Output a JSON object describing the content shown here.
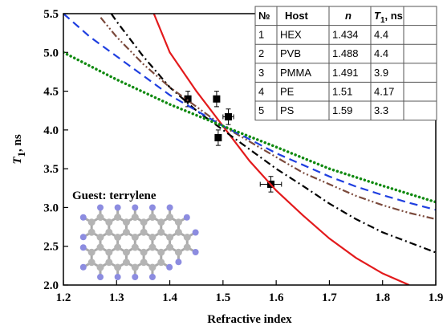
{
  "chart_data": {
    "type": "line",
    "x_label": "Refractive index",
    "y_label": {
      "symbol": "T",
      "subscript": "1",
      "unit": ", ns"
    },
    "annotation": "Guest: terrylene",
    "xlim": [
      1.2,
      1.9
    ],
    "xticks": [
      1.2,
      1.3,
      1.4,
      1.5,
      1.6,
      1.7,
      1.8,
      1.9
    ],
    "ylim": [
      2.0,
      5.5
    ],
    "yticks": [
      {
        "value": 2,
        "label": "2.0"
      },
      2.5,
      {
        "value": 3,
        "label": "3.0"
      },
      3.5,
      {
        "value": 4,
        "label": "4.0"
      },
      4.5,
      {
        "value": 5,
        "label": "5.0"
      },
      5.5
    ],
    "series": [
      {
        "type": "scatter",
        "marker": "square",
        "color": "#000000",
        "x": [
          1.434,
          1.488,
          1.491,
          1.51,
          1.59
        ],
        "values": [
          4.4,
          4.4,
          3.9,
          4.17,
          3.3
        ],
        "yerr": [
          0.1,
          0.1,
          0.1,
          0.1,
          0.1
        ],
        "xerr": [
          0,
          0,
          0,
          0.01,
          0.02
        ]
      },
      {
        "type": "line",
        "color": "#e31a1c",
        "dash": "solid",
        "x": [
          1.37,
          1.4,
          1.45,
          1.5,
          1.55,
          1.6,
          1.65,
          1.7,
          1.75,
          1.8,
          1.85
        ],
        "values": [
          5.5,
          5.0,
          4.5,
          4.05,
          3.6,
          3.22,
          2.9,
          2.6,
          2.35,
          2.15,
          2.0
        ]
      },
      {
        "type": "line",
        "color": "#000000",
        "dash": "dashdot",
        "x": [
          1.29,
          1.3,
          1.35,
          1.4,
          1.45,
          1.5,
          1.55,
          1.6,
          1.65,
          1.7,
          1.75,
          1.8,
          1.85,
          1.9
        ],
        "values": [
          5.5,
          5.4,
          4.95,
          4.55,
          4.25,
          4.0,
          3.75,
          3.5,
          3.28,
          3.05,
          2.85,
          2.68,
          2.55,
          2.42
        ]
      },
      {
        "type": "line",
        "color": "#7b4a3c",
        "dash": "dashdotdot",
        "x": [
          1.27,
          1.3,
          1.35,
          1.4,
          1.45,
          1.5,
          1.55,
          1.6,
          1.65,
          1.7,
          1.75,
          1.8,
          1.85,
          1.9
        ],
        "values": [
          5.45,
          5.2,
          4.85,
          4.55,
          4.3,
          4.05,
          3.85,
          3.65,
          3.45,
          3.3,
          3.15,
          3.03,
          2.93,
          2.85
        ]
      },
      {
        "type": "line",
        "color": "#1f3fe0",
        "dash": "dashed",
        "x": [
          1.2,
          1.25,
          1.3,
          1.35,
          1.4,
          1.45,
          1.5,
          1.55,
          1.6,
          1.65,
          1.7,
          1.75,
          1.8,
          1.85,
          1.9
        ],
        "values": [
          5.5,
          5.2,
          4.95,
          4.7,
          4.45,
          4.25,
          4.05,
          3.88,
          3.7,
          3.55,
          3.4,
          3.27,
          3.16,
          3.06,
          2.97
        ]
      },
      {
        "type": "line",
        "color": "#108a10",
        "dash": "dotted",
        "x": [
          1.2,
          1.3,
          1.4,
          1.5,
          1.6,
          1.7,
          1.8,
          1.9
        ],
        "values": [
          5.0,
          4.65,
          4.33,
          4.05,
          3.78,
          3.5,
          3.28,
          3.07
        ]
      }
    ]
  },
  "table": {
    "header": [
      "№",
      "Host",
      "n",
      {
        "symbol": "T",
        "subscript": "1",
        "unit": ", ns"
      }
    ],
    "rows": [
      [
        "1",
        "HEX",
        "1.434",
        "4.4"
      ],
      [
        "2",
        "PVB",
        "1.488",
        "4.4"
      ],
      [
        "3",
        "PMMA",
        "1.491",
        "3.9"
      ],
      [
        "4",
        "PE",
        "1.51",
        "4.17"
      ],
      [
        "5",
        "PS",
        "1.59",
        "3.3"
      ]
    ]
  }
}
